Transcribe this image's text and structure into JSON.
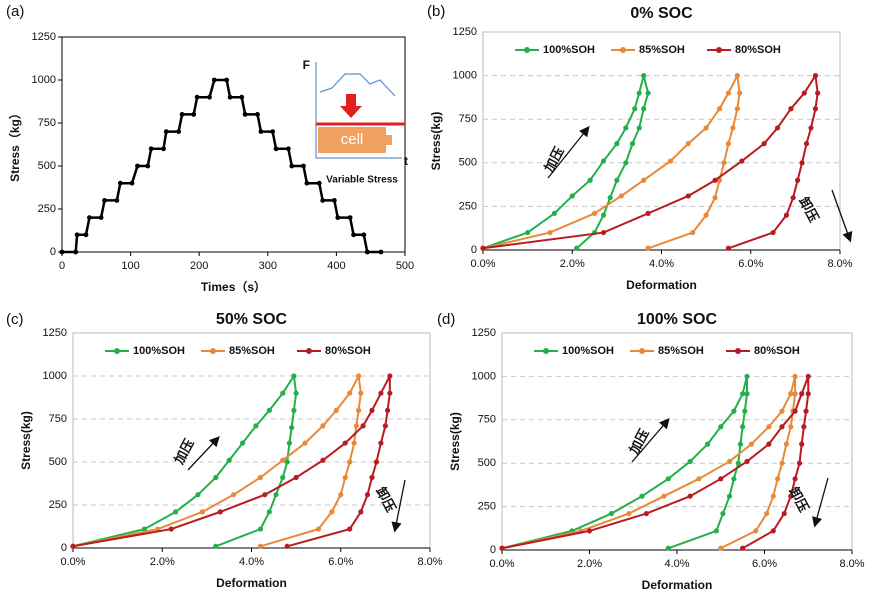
{
  "chart_data": [
    {
      "type": "line",
      "panel": "(a)",
      "xlabel": "Times（s）",
      "ylabel": "Stress（kg）",
      "xlim": [
        0,
        500
      ],
      "xticks": [
        0,
        100,
        200,
        300,
        400,
        500
      ],
      "ylim": [
        0,
        1250
      ],
      "yticks": [
        0,
        250,
        500,
        750,
        1000,
        1250
      ],
      "grid": false,
      "inset": {
        "y_label": "F",
        "x_label": "t",
        "cell_label": "cell",
        "caption": "Variable Stress"
      },
      "series": [
        {
          "color": "#000000",
          "x": [
            0,
            20,
            22,
            35,
            40,
            57,
            62,
            80,
            85,
            102,
            110,
            125,
            130,
            148,
            152,
            170,
            175,
            192,
            197,
            215,
            222,
            240,
            245,
            262,
            267,
            285,
            290,
            307,
            312,
            330,
            335,
            352,
            357,
            375,
            380,
            397,
            402,
            420,
            425,
            440,
            445,
            465
          ],
          "values": [
            0,
            0,
            100,
            100,
            200,
            200,
            300,
            300,
            400,
            400,
            500,
            500,
            600,
            600,
            700,
            700,
            800,
            800,
            900,
            900,
            1000,
            1000,
            900,
            900,
            800,
            800,
            700,
            700,
            600,
            600,
            500,
            500,
            400,
            400,
            300,
            300,
            200,
            200,
            100,
            100,
            0,
            0
          ]
        }
      ]
    },
    {
      "type": "line",
      "panel": "(b)",
      "title": "0% SOC",
      "xlabel": "Deformation",
      "ylabel": "Stress(kg)",
      "xlim": [
        0,
        8
      ],
      "xticks": [
        {
          "value": 0,
          "label": "0.0%"
        },
        {
          "value": 2,
          "label": "2.0%"
        },
        {
          "value": 4,
          "label": "4.0%"
        },
        {
          "value": 6,
          "label": "6.0%"
        },
        {
          "value": 8,
          "label": "8.0%"
        }
      ],
      "ylim": [
        0,
        1250
      ],
      "yticks": [
        0,
        250,
        500,
        750,
        1000,
        1250
      ],
      "grid": true,
      "legend": "top",
      "annotations": [
        "加压",
        "卸压"
      ],
      "series": [
        {
          "name": "100%SOH",
          "color": "#22b04b",
          "x": [
            0,
            1.0,
            1.6,
            2.0,
            2.4,
            2.7,
            3.0,
            3.2,
            3.4,
            3.5,
            3.6,
            3.7,
            3.6,
            3.5,
            3.35,
            3.2,
            3.0,
            2.85,
            2.7,
            2.5,
            2.1
          ],
          "values": [
            10,
            100,
            210,
            310,
            400,
            510,
            610,
            700,
            810,
            900,
            1000,
            900,
            810,
            700,
            610,
            500,
            400,
            300,
            200,
            100,
            10
          ]
        },
        {
          "name": "85%SOH",
          "color": "#e8893a",
          "x": [
            0,
            1.5,
            2.5,
            3.1,
            3.6,
            4.2,
            4.6,
            5.0,
            5.3,
            5.5,
            5.7,
            5.75,
            5.7,
            5.6,
            5.5,
            5.4,
            5.3,
            5.2,
            5.0,
            4.7,
            3.7
          ],
          "values": [
            10,
            100,
            210,
            310,
            400,
            510,
            610,
            700,
            810,
            900,
            1000,
            900,
            810,
            700,
            610,
            500,
            400,
            300,
            200,
            100,
            10
          ]
        },
        {
          "name": "80%SOH",
          "color": "#b81c22",
          "x": [
            0,
            2.7,
            3.7,
            4.6,
            5.2,
            5.8,
            6.3,
            6.6,
            6.9,
            7.2,
            7.45,
            7.5,
            7.45,
            7.35,
            7.25,
            7.15,
            7.05,
            6.95,
            6.8,
            6.5,
            5.5
          ],
          "values": [
            10,
            100,
            210,
            310,
            400,
            510,
            610,
            700,
            810,
            900,
            1000,
            900,
            810,
            700,
            610,
            500,
            400,
            300,
            200,
            100,
            10
          ]
        }
      ]
    },
    {
      "type": "line",
      "panel": "(c)",
      "title": "50% SOC",
      "xlabel": "Deformation",
      "ylabel": "Stress(kg)",
      "xlim": [
        0,
        8
      ],
      "xticks": [
        {
          "value": 0,
          "label": "0.0%"
        },
        {
          "value": 2,
          "label": "2.0%"
        },
        {
          "value": 4,
          "label": "4.0%"
        },
        {
          "value": 6,
          "label": "6.0%"
        },
        {
          "value": 8,
          "label": "8.0%"
        }
      ],
      "ylim": [
        0,
        1250
      ],
      "yticks": [
        0,
        250,
        500,
        750,
        1000,
        1250
      ],
      "grid": true,
      "legend": "top",
      "annotations": [
        "加压",
        "卸压"
      ],
      "series": [
        {
          "name": "100%SOH",
          "color": "#22b04b",
          "x": [
            0,
            1.6,
            2.3,
            2.8,
            3.2,
            3.5,
            3.8,
            4.1,
            4.4,
            4.7,
            4.95,
            5.0,
            4.95,
            4.9,
            4.85,
            4.8,
            4.7,
            4.55,
            4.4,
            4.2,
            3.2
          ],
          "values": [
            10,
            110,
            210,
            310,
            410,
            510,
            610,
            710,
            800,
            900,
            1000,
            900,
            800,
            700,
            610,
            500,
            410,
            310,
            210,
            110,
            10
          ]
        },
        {
          "name": "85%SOH",
          "color": "#e8893a",
          "x": [
            0,
            1.9,
            2.9,
            3.6,
            4.2,
            4.7,
            5.2,
            5.6,
            5.9,
            6.2,
            6.4,
            6.45,
            6.4,
            6.35,
            6.3,
            6.2,
            6.1,
            6.0,
            5.8,
            5.5,
            4.2
          ],
          "values": [
            10,
            110,
            210,
            310,
            410,
            510,
            610,
            710,
            800,
            900,
            1000,
            900,
            800,
            710,
            610,
            500,
            410,
            310,
            210,
            110,
            10
          ]
        },
        {
          "name": "80%SOH",
          "color": "#b81c22",
          "x": [
            0,
            2.2,
            3.3,
            4.3,
            5.0,
            5.6,
            6.1,
            6.5,
            6.7,
            6.9,
            7.1,
            7.1,
            7.05,
            7.0,
            6.9,
            6.8,
            6.7,
            6.6,
            6.45,
            6.2,
            4.8
          ],
          "values": [
            10,
            110,
            210,
            310,
            410,
            510,
            610,
            710,
            800,
            900,
            1000,
            900,
            800,
            710,
            610,
            500,
            410,
            310,
            210,
            110,
            10
          ]
        }
      ]
    },
    {
      "type": "line",
      "panel": "(d)",
      "title": "100% SOC",
      "xlabel": "Deformation",
      "ylabel": "Stress(kg)",
      "xlim": [
        0,
        8
      ],
      "xticks": [
        {
          "value": 0,
          "label": "0.0%"
        },
        {
          "value": 2,
          "label": "2.0%"
        },
        {
          "value": 4,
          "label": "4.0%"
        },
        {
          "value": 6,
          "label": "6.0%"
        },
        {
          "value": 8,
          "label": "8.0%"
        }
      ],
      "ylim": [
        0,
        1250
      ],
      "yticks": [
        0,
        250,
        500,
        750,
        1000,
        1250
      ],
      "grid": true,
      "legend": "top",
      "annotations": [
        "加压",
        "卸压"
      ],
      "series": [
        {
          "name": "100%SOH",
          "color": "#22b04b",
          "x": [
            0,
            1.6,
            2.5,
            3.2,
            3.8,
            4.3,
            4.7,
            5.0,
            5.3,
            5.5,
            5.6,
            5.6,
            5.55,
            5.5,
            5.45,
            5.4,
            5.3,
            5.2,
            5.05,
            4.9,
            3.8
          ],
          "values": [
            10,
            110,
            210,
            310,
            410,
            510,
            610,
            710,
            800,
            900,
            1000,
            900,
            800,
            710,
            610,
            500,
            410,
            310,
            210,
            110,
            10
          ]
        },
        {
          "name": "85%SOH",
          "color": "#e8893a",
          "x": [
            0,
            1.8,
            2.9,
            3.7,
            4.5,
            5.2,
            5.7,
            6.1,
            6.4,
            6.6,
            6.7,
            6.7,
            6.65,
            6.6,
            6.5,
            6.4,
            6.3,
            6.2,
            6.05,
            5.8,
            5.0
          ],
          "values": [
            10,
            110,
            210,
            310,
            410,
            510,
            610,
            710,
            800,
            900,
            1000,
            900,
            800,
            710,
            610,
            500,
            410,
            310,
            210,
            110,
            10
          ]
        },
        {
          "name": "80%SOH",
          "color": "#b81c22",
          "x": [
            0,
            2.0,
            3.3,
            4.3,
            5.0,
            5.6,
            6.1,
            6.4,
            6.7,
            6.85,
            7.0,
            7.0,
            6.95,
            6.9,
            6.85,
            6.8,
            6.7,
            6.6,
            6.45,
            6.2,
            5.5
          ],
          "values": [
            10,
            110,
            210,
            310,
            410,
            510,
            610,
            710,
            800,
            900,
            1000,
            900,
            800,
            710,
            610,
            500,
            410,
            310,
            210,
            110,
            10
          ]
        }
      ]
    }
  ]
}
